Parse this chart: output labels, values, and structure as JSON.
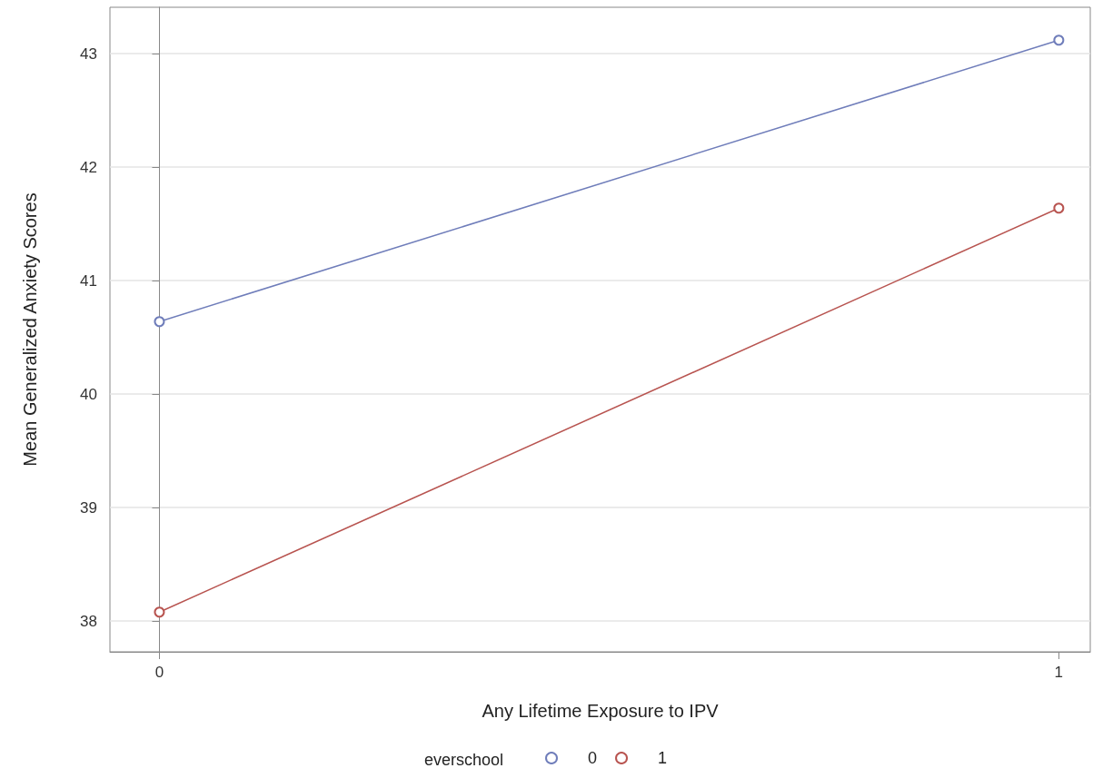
{
  "chart_data": {
    "type": "line",
    "xlabel": "Any Lifetime Exposure to IPV",
    "ylabel": "Mean Generalized Anxiety Scores",
    "legend_title": "everschool",
    "x": [
      0,
      1
    ],
    "series": [
      {
        "name": "0",
        "color": "#6f7dba",
        "values": [
          40.64,
          43.12
        ]
      },
      {
        "name": "1",
        "color": "#b85450",
        "values": [
          38.08,
          41.64
        ]
      }
    ],
    "xlim": [
      -0.055,
      1.035
    ],
    "xticks": [
      0,
      1
    ],
    "ylim": [
      37.73,
      43.41
    ],
    "yticks": [
      38,
      39,
      40,
      41,
      42,
      43
    ],
    "grid": "y",
    "legend": "bottom",
    "marker": "circle",
    "line_style": "solid"
  }
}
